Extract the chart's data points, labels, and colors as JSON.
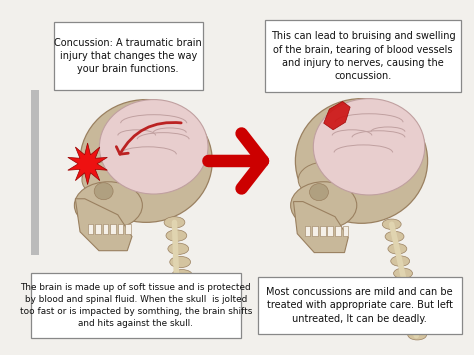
{
  "bg_color": "#f2f0ec",
  "box_color": "#ffffff",
  "box_edge": "#888888",
  "arrow_color": "#cc0000",
  "text_color": "#111111",
  "skull_color": "#c8b89a",
  "skull_edge": "#9a8060",
  "brain_color": "#e8cece",
  "brain_edge": "#c0a0a0",
  "spine_color": "#d4c4a0",
  "spine_edge": "#9a8060",
  "red_burst": "#ee1111",
  "red_contusion": "#cc1111",
  "grey_bar": "#bbbbbb",
  "top_left_text": "Concussion: A traumatic brain\ninjury that changes the way\nyour brain functions.",
  "top_right_text": "This can lead to bruising and swelling\nof the brain, tearing of blood vessels\nand injury to nerves, causing the\nconcussion.",
  "bottom_left_text": "The brain is made up of soft tissue and is protected\nby blood and spinal fluid. When the skull  is jolted\ntoo fast or is impacted by somthing, the brain shifts\nand hits against the skull.",
  "bottom_right_text": "Most concussions are mild and can be\ntreated with appropriate care. But left\nuntreated, It can be deadly.",
  "figsize": [
    4.74,
    3.55
  ],
  "dpi": 100
}
